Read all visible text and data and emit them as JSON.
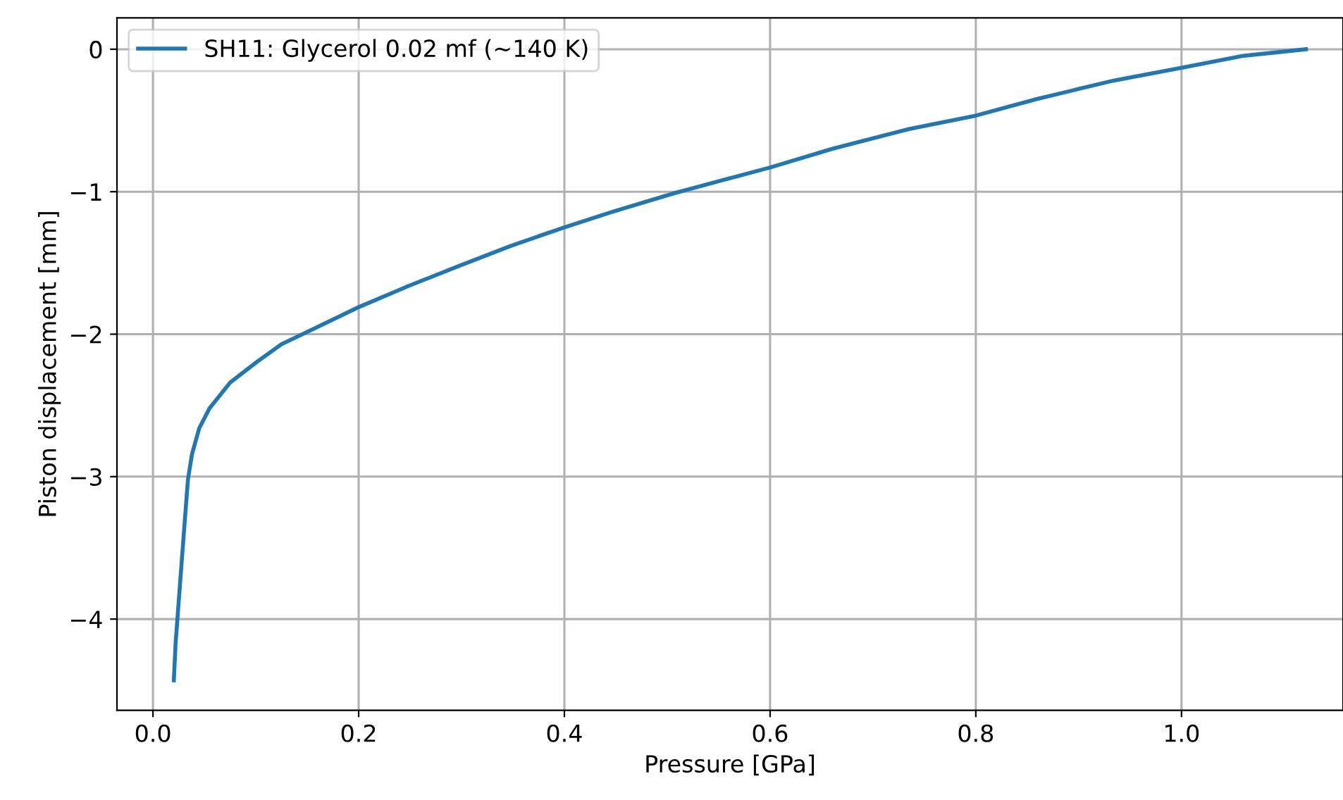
{
  "chart_data": {
    "type": "line",
    "xlabel": "Pressure [GPa]",
    "ylabel": "Piston displacement [mm]",
    "xlim": [
      -0.035,
      1.157
    ],
    "ylim": [
      -4.64,
      0.22
    ],
    "xticks": [
      {
        "value": 0,
        "label": "0.0"
      },
      {
        "value": 0.2,
        "label": "0.2"
      },
      {
        "value": 0.4,
        "label": "0.4"
      },
      {
        "value": 0.6,
        "label": "0.6"
      },
      {
        "value": 0.8,
        "label": "0.8"
      },
      {
        "value": 1.0,
        "label": "1.0"
      }
    ],
    "yticks": [
      {
        "value": -4,
        "label": "−4"
      },
      {
        "value": -3,
        "label": "−3"
      },
      {
        "value": -2,
        "label": "−2"
      },
      {
        "value": -1,
        "label": "−1"
      },
      0
    ],
    "grid": true,
    "legend": "top left",
    "series": [
      {
        "name": "SH11: Glycerol 0.02 mf (~140 K)",
        "color": "#1f77b4",
        "x": [
          0.0203,
          0.022,
          0.028,
          0.034,
          0.038,
          0.045,
          0.055,
          0.075,
          0.1,
          0.125,
          0.154,
          0.2,
          0.249,
          0.298,
          0.348,
          0.4,
          0.447,
          0.507,
          0.6,
          0.66,
          0.735,
          0.8,
          0.859,
          0.934,
          1.0,
          1.059,
          1.121
        ],
        "values": [
          -4.43,
          -4.17,
          -3.59,
          -3.02,
          -2.84,
          -2.66,
          -2.52,
          -2.34,
          -2.2,
          -2.07,
          -1.97,
          -1.81,
          -1.66,
          -1.52,
          -1.38,
          -1.25,
          -1.14,
          -1.01,
          -0.83,
          -0.7,
          -0.56,
          -0.466,
          -0.35,
          -0.22,
          -0.13,
          -0.047,
          0.0
        ]
      }
    ]
  }
}
